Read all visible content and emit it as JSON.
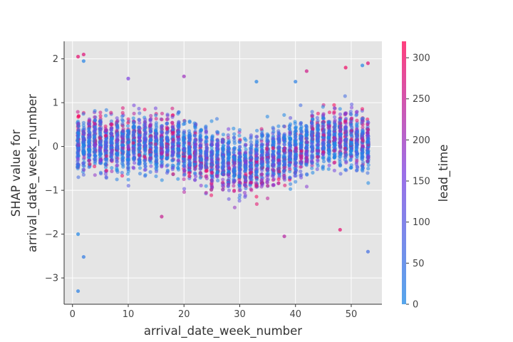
{
  "chart_data": {
    "type": "scatter",
    "title": "",
    "xlabel": "arrival_date_week_number",
    "ylabel_lines": [
      "SHAP value for",
      "arrival_date_week_number"
    ],
    "xlim": [
      -1.5,
      55.5
    ],
    "ylim": [
      -3.6,
      2.4
    ],
    "x_ticks": [
      0,
      10,
      20,
      30,
      40,
      50
    ],
    "y_ticks": [
      -3,
      -2,
      -1,
      0,
      1,
      2
    ],
    "grid": true,
    "background": "#e5e5e5",
    "colorbar": {
      "label": "lead_time",
      "range": [
        0,
        320
      ],
      "ticks": [
        0,
        50,
        100,
        150,
        200,
        250,
        300
      ],
      "low_color": "#1e88e5",
      "mid_color": "#7b3fe0",
      "high_color": "#ff0052"
    },
    "series": [
      {
        "points": [
          {
            "x": 1,
            "y": -3.3,
            "c": 20
          },
          {
            "x": 1,
            "y": -2.0,
            "c": 5
          },
          {
            "x": 1,
            "y": 2.05,
            "c": 290
          },
          {
            "x": 2,
            "y": 1.95,
            "c": 10
          },
          {
            "x": 2,
            "y": 2.1,
            "c": 280
          },
          {
            "x": 2,
            "y": -2.52,
            "c": 30
          },
          {
            "x": 10,
            "y": 1.55,
            "c": 160
          },
          {
            "x": 16,
            "y": -1.6,
            "c": 250
          },
          {
            "x": 20,
            "y": 1.6,
            "c": 200
          },
          {
            "x": 33,
            "y": 1.48,
            "c": 10
          },
          {
            "x": 38,
            "y": -2.05,
            "c": 230
          },
          {
            "x": 40,
            "y": 1.48,
            "c": 20
          },
          {
            "x": 42,
            "y": 1.72,
            "c": 260
          },
          {
            "x": 48,
            "y": -1.9,
            "c": 290
          },
          {
            "x": 49,
            "y": 1.8,
            "c": 300
          },
          {
            "x": 52,
            "y": 1.85,
            "c": 10
          },
          {
            "x": 53,
            "y": 1.9,
            "c": 280
          },
          {
            "x": 53,
            "y": -2.4,
            "c": 60
          }
        ]
      }
    ]
  }
}
